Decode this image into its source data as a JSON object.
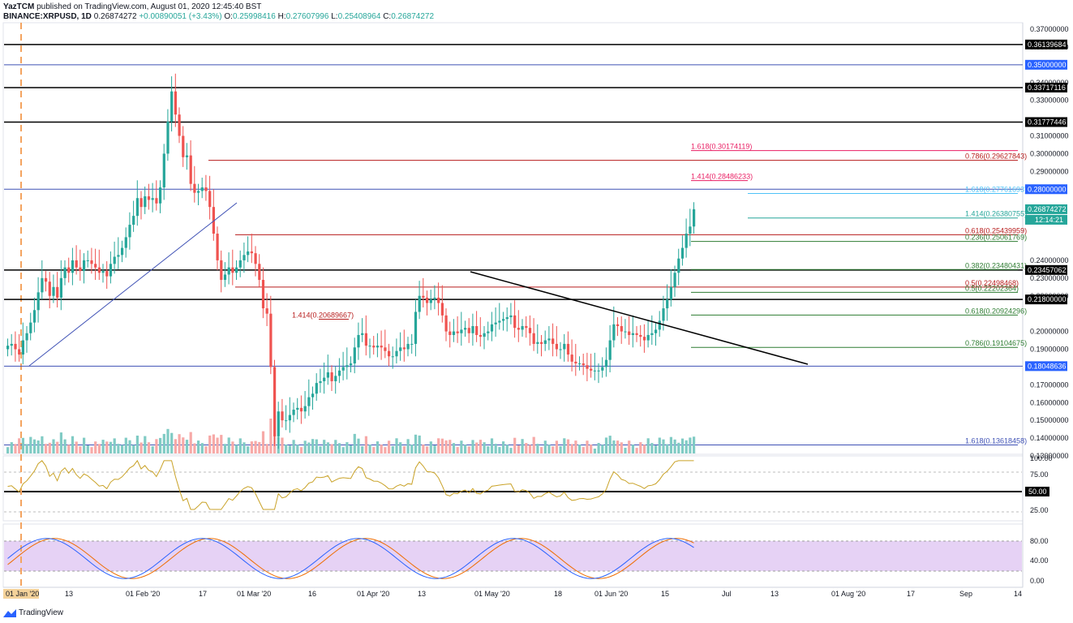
{
  "header": {
    "publisher": "YazTCM",
    "published_text": "published on TradingView.com, August 01, 2020 12:45:40 BST",
    "symbol": "BINANCE:XRPUSD, 1D",
    "last": "0.26874272",
    "change": "+0.00890051 (+3.43%)",
    "o_label": "O:",
    "o_value": "0.25998416",
    "h_label": "H:",
    "h_value": "0.27607996",
    "l_label": "L:",
    "l_value": "0.25408964",
    "c_label": "C:",
    "c_value": "0.26874272"
  },
  "footer": {
    "brand": "TradingView"
  },
  "colors": {
    "up": "#26a69a",
    "down": "#ef5350",
    "vol_up": "#80cbc4",
    "vol_down": "#f7a9a7",
    "rsi_line": "#c9a227",
    "stoch_k": "#2962ff",
    "stoch_d": "#ef6c00",
    "stoch_band": "#e1bee7"
  },
  "chart_data": [
    {
      "type": "candlestick",
      "title": "BINANCE:XRPUSD, 1D",
      "y_axis_ticks": [
        "0.37000000",
        "0.36000000",
        "0.34000000",
        "0.33000000",
        "0.31000000",
        "0.30000000",
        "0.29000000",
        "0.24000000",
        "0.23000000",
        "0.22000000",
        "0.20000000",
        "0.19000000",
        "0.17000000",
        "0.16000000",
        "0.15000000",
        "0.14000000",
        "0.13000000"
      ],
      "x_axis_ticks": [
        "01 Jan '20",
        "13",
        "01 Feb '20",
        "17",
        "01 Mar '20",
        "16",
        "01 Apr '20",
        "13",
        "01 May '20",
        "18",
        "01 Jun '20",
        "15",
        "Jul",
        "13",
        "01 Aug '20",
        "17",
        "Sep",
        "14"
      ],
      "horizontal_levels": [
        {
          "label": "0.36139684",
          "kind": "resistance"
        },
        {
          "label": "0.35000000",
          "kind": "blue"
        },
        {
          "label": "0.33717116",
          "kind": "resistance"
        },
        {
          "label": "0.31777446",
          "kind": "resistance"
        },
        {
          "label": "0.28000000",
          "kind": "blue"
        },
        {
          "label": "0.23457062",
          "kind": "resistance"
        },
        {
          "label": "0.21800000",
          "kind": "resistance"
        },
        {
          "label": "0.18048636",
          "kind": "blue"
        }
      ],
      "fib_annotations": [
        {
          "label": "1.618(0.30174119)"
        },
        {
          "label": "0.786(0.29627843)"
        },
        {
          "label": "1.414(0.28486233)"
        },
        {
          "label": "1.618(0.27761693)"
        },
        {
          "label": "1.414(0.26380755)"
        },
        {
          "label": "0.618(0.25439959)"
        },
        {
          "label": "0.236(0.25061769)"
        },
        {
          "label": "0.382(0.23480431)"
        },
        {
          "label": "0.5(0.22498468)"
        },
        {
          "label": "0.5(0.22202364)"
        },
        {
          "label": "1.414(0.20689667)"
        },
        {
          "label": "0.618(0.20924296)"
        },
        {
          "label": "0.786(0.19104675)"
        },
        {
          "label": "1.618(0.13618458)"
        }
      ],
      "price_badges": {
        "last_price": "0.26874272",
        "countdown": "12:14:21"
      },
      "series_description": "XRP/USD daily candles from Jan to Aug 2020",
      "closes": [
        0.192,
        0.193,
        0.19,
        0.187,
        0.195,
        0.199,
        0.205,
        0.212,
        0.222,
        0.23,
        0.228,
        0.22,
        0.225,
        0.219,
        0.23,
        0.236,
        0.233,
        0.24,
        0.236,
        0.234,
        0.24,
        0.24,
        0.238,
        0.236,
        0.233,
        0.234,
        0.231,
        0.238,
        0.242,
        0.243,
        0.247,
        0.253,
        0.26,
        0.265,
        0.275,
        0.27,
        0.276,
        0.274,
        0.275,
        0.272,
        0.281,
        0.3,
        0.318,
        0.335,
        0.322,
        0.31,
        0.298,
        0.299,
        0.283,
        0.278,
        0.279,
        0.281,
        0.279,
        0.27,
        0.255,
        0.24,
        0.229,
        0.232,
        0.236,
        0.233,
        0.236,
        0.24,
        0.243,
        0.245,
        0.244,
        0.238,
        0.229,
        0.213,
        0.21,
        0.18,
        0.141,
        0.155,
        0.15,
        0.15,
        0.153,
        0.156,
        0.157,
        0.155,
        0.158,
        0.163,
        0.165,
        0.171,
        0.172,
        0.174,
        0.177,
        0.172,
        0.175,
        0.178,
        0.18,
        0.181,
        0.182,
        0.191,
        0.198,
        0.199,
        0.192,
        0.192,
        0.191,
        0.192,
        0.191,
        0.189,
        0.186,
        0.186,
        0.189,
        0.191,
        0.19,
        0.193,
        0.193,
        0.211,
        0.22,
        0.219,
        0.216,
        0.218,
        0.219,
        0.216,
        0.209,
        0.2,
        0.198,
        0.2,
        0.199,
        0.201,
        0.202,
        0.199,
        0.203,
        0.198,
        0.197,
        0.199,
        0.2,
        0.204,
        0.205,
        0.206,
        0.207,
        0.208,
        0.209,
        0.202,
        0.201,
        0.203,
        0.202,
        0.199,
        0.193,
        0.194,
        0.193,
        0.195,
        0.196,
        0.193,
        0.19,
        0.19,
        0.193,
        0.187,
        0.183,
        0.182,
        0.182,
        0.181,
        0.179,
        0.178,
        0.178,
        0.178,
        0.18,
        0.184,
        0.195,
        0.204,
        0.203,
        0.2,
        0.2,
        0.198,
        0.199,
        0.198,
        0.197,
        0.195,
        0.198,
        0.199,
        0.201,
        0.206,
        0.213,
        0.218,
        0.225,
        0.233,
        0.241,
        0.247,
        0.255,
        0.259,
        0.2687
      ],
      "rsi": {
        "levels": [
          "100.00",
          "75.00",
          "50.00",
          "25.00"
        ],
        "marker": "50.00"
      },
      "stoch_rsi": {
        "levels": [
          "80.00",
          "40.00",
          "0.00"
        ]
      }
    }
  ]
}
